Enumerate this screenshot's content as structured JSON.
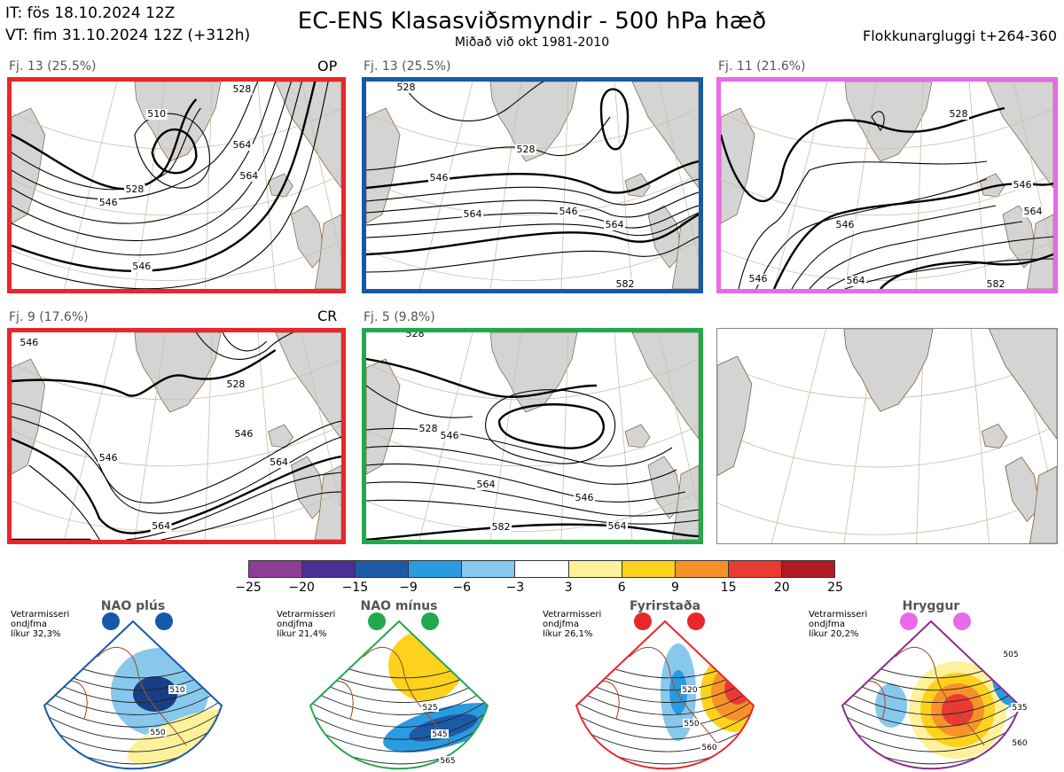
{
  "header": {
    "it": "IT: fös 18.10.2024 12Z",
    "vt": "VT: fim 31.10.2024 12Z  (+312h)",
    "title": "EC-ENS Klasasviðsmyndir - 500 hPa hæð",
    "subtitle": "Miðað við okt 1981-2010",
    "window": "Flokkunargluggi t+264-360"
  },
  "panels": [
    {
      "label": "Fj. 13 (25.5%)",
      "tag": "OP",
      "border": "#e8272a",
      "contours": [
        {
          "text": "510"
        },
        {
          "text": "528"
        },
        {
          "text": "546"
        },
        {
          "text": "564"
        },
        {
          "text": "564"
        },
        {
          "text": "546"
        },
        {
          "text": "528"
        }
      ]
    },
    {
      "label": "Fj. 13 (25.5%)",
      "tag": "",
      "border": "#1659a8",
      "contours": [
        {
          "text": "528"
        },
        {
          "text": "546"
        },
        {
          "text": "546"
        },
        {
          "text": "564"
        },
        {
          "text": "564"
        },
        {
          "text": "582"
        },
        {
          "text": "528"
        }
      ]
    },
    {
      "label": "Fj. 11 (21.6%)",
      "tag": "",
      "border": "#e86ae8",
      "contours": [
        {
          "text": "528"
        },
        {
          "text": "546"
        },
        {
          "text": "546"
        },
        {
          "text": "564"
        },
        {
          "text": "564"
        },
        {
          "text": "582"
        },
        {
          "text": "546"
        }
      ]
    },
    {
      "label": "Fj. 9 (17.6%)",
      "tag": "CR",
      "border": "#e8272a",
      "contours": [
        {
          "text": "546"
        },
        {
          "text": "528"
        },
        {
          "text": "546"
        },
        {
          "text": "546"
        },
        {
          "text": "564"
        },
        {
          "text": "564"
        }
      ]
    },
    {
      "label": "Fj. 5 (9.8%)",
      "tag": "",
      "border": "#22a84c",
      "contours": [
        {
          "text": "528"
        },
        {
          "text": "546"
        },
        {
          "text": "564"
        },
        {
          "text": "546"
        },
        {
          "text": "582"
        },
        {
          "text": "564"
        },
        {
          "text": "528"
        }
      ]
    },
    {
      "label": "",
      "tag": "",
      "border": "#888888",
      "contours": []
    }
  ],
  "colorbar": {
    "colors": [
      "#8c3e95",
      "#4b2f92",
      "#1d5aa6",
      "#2a9be0",
      "#88c8ec",
      "#ffffff",
      "#fdf29b",
      "#fdd21d",
      "#f7922b",
      "#ea3a34",
      "#b01a20"
    ],
    "ticks": [
      "−25",
      "−20",
      "−15",
      "−9",
      "−6",
      "−3",
      "3",
      "6",
      "9",
      "15",
      "20",
      "25"
    ]
  },
  "regimes": [
    {
      "title": "NAO plús",
      "note": [
        "Vetrarmisseri",
        "ondjfma",
        "líkur 32,3%"
      ],
      "color": "#1659a8",
      "dot": "#1659a8",
      "contours": [
        {
          "text": "510"
        },
        {
          "text": "550"
        }
      ]
    },
    {
      "title": "NAO mínus",
      "note": [
        "Vetrarmisseri",
        "ondjfma",
        "líkur 21,4%"
      ],
      "color": "#22a84c",
      "dot": "#22a84c",
      "contours": [
        {
          "text": "525"
        },
        {
          "text": "545"
        },
        {
          "text": "565"
        }
      ]
    },
    {
      "title": "Fyrirstaða",
      "note": [
        "Vetrarmisseri",
        "ondjfma",
        "líkur 26,1%"
      ],
      "color": "#e8272a",
      "dot": "#e8272a",
      "contours": [
        {
          "text": "520"
        },
        {
          "text": "550"
        },
        {
          "text": "560"
        }
      ]
    },
    {
      "title": "Hryggur",
      "note": [
        "Vetrarmisseri",
        "ondjfma",
        "líkur 20,2%"
      ],
      "color": "#8b2c8f",
      "dot": "#e86ae8",
      "contours": [
        {
          "text": "505"
        },
        {
          "text": "535"
        },
        {
          "text": "560"
        }
      ]
    }
  ]
}
